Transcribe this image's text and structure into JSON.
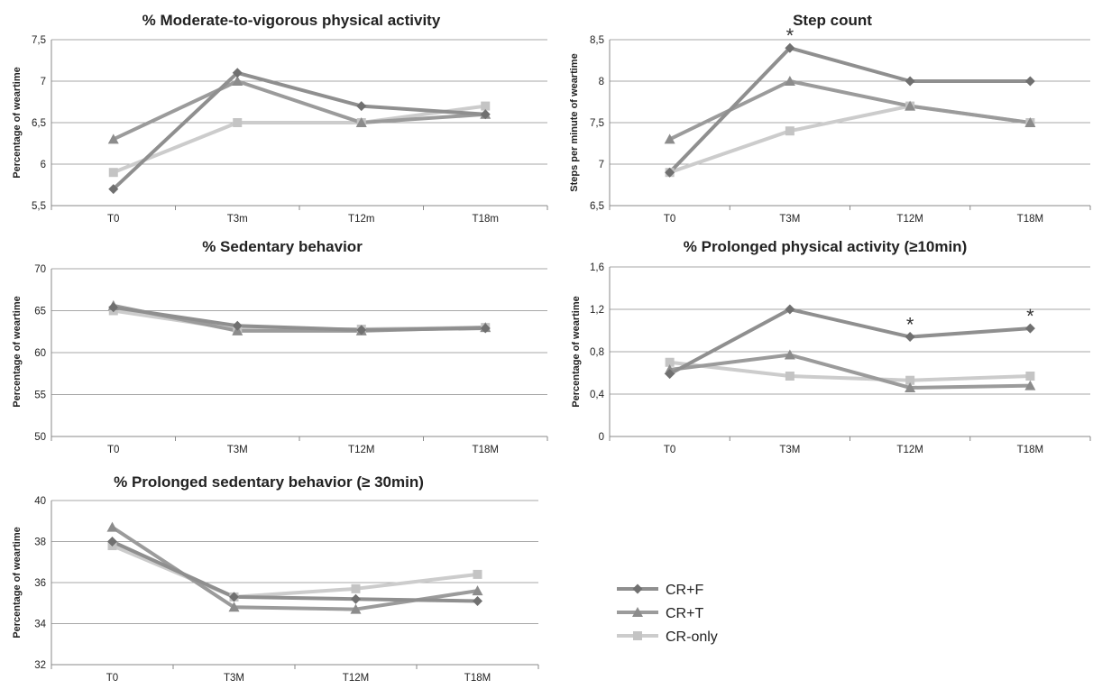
{
  "series_styles": [
    {
      "name": "CR+F",
      "color": "#8f8f8f",
      "marker": "diamond"
    },
    {
      "name": "CR+T",
      "color": "#9b9b9b",
      "marker": "triangle"
    },
    {
      "name": "CR-only",
      "color": "#cccccc",
      "marker": "square"
    }
  ],
  "legend": {
    "placement": "bottom-right",
    "items": [
      "CR+F",
      "CR+T",
      "CR-only"
    ]
  },
  "chart_data": [
    {
      "type": "line",
      "title": "% Moderate-to-vigorous physical activity",
      "ylabel": "Percentage of weartime",
      "xlabel": "",
      "categories": [
        "T0",
        "T3m",
        "T12m",
        "T18m"
      ],
      "ylim": [
        5.5,
        7.5
      ],
      "yticks": [
        "5,5",
        "6",
        "6,5",
        "7",
        "7,5"
      ],
      "grid": true,
      "series": [
        {
          "name": "CR+F",
          "values": [
            5.7,
            7.1,
            6.7,
            6.6
          ]
        },
        {
          "name": "CR+T",
          "values": [
            6.3,
            7.0,
            6.5,
            6.6
          ]
        },
        {
          "name": "CR-only",
          "values": [
            5.9,
            6.5,
            6.5,
            6.7
          ]
        }
      ],
      "annotations": []
    },
    {
      "type": "line",
      "title": "Step count",
      "ylabel": "Steps per minute of weartime",
      "xlabel": "",
      "categories": [
        "T0",
        "T3M",
        "T12M",
        "T18M"
      ],
      "ylim": [
        6.5,
        8.5
      ],
      "yticks": [
        "6,5",
        "7",
        "7,5",
        "8",
        "8,5"
      ],
      "grid": true,
      "series": [
        {
          "name": "CR+F",
          "values": [
            6.9,
            8.4,
            8.0,
            8.0
          ]
        },
        {
          "name": "CR+T",
          "values": [
            7.3,
            8.0,
            7.7,
            7.5
          ]
        },
        {
          "name": "CR-only",
          "values": [
            6.9,
            7.4,
            7.7,
            7.5
          ]
        }
      ],
      "annotations": [
        {
          "text": "*",
          "category": 1,
          "value": 8.4
        }
      ]
    },
    {
      "type": "line",
      "title": "% Sedentary behavior",
      "ylabel": "Percentage of weartime",
      "xlabel": "",
      "categories": [
        "T0",
        "T3M",
        "T12M",
        "T18M"
      ],
      "ylim": [
        50,
        70
      ],
      "yticks": [
        "50",
        "55",
        "60",
        "65",
        "70"
      ],
      "grid": true,
      "series": [
        {
          "name": "CR+F",
          "values": [
            65.4,
            63.2,
            62.7,
            62.9
          ]
        },
        {
          "name": "CR+T",
          "values": [
            65.6,
            62.6,
            62.6,
            63.0
          ]
        },
        {
          "name": "CR-only",
          "values": [
            65.0,
            62.8,
            62.8,
            63.0
          ]
        }
      ],
      "annotations": []
    },
    {
      "type": "line",
      "title": "% Prolonged physical activity (≥10min)",
      "ylabel": "Percentage of weartime",
      "xlabel": "",
      "categories": [
        "T0",
        "T3M",
        "T12M",
        "T18M"
      ],
      "ylim": [
        0,
        1.6
      ],
      "yticks": [
        "0",
        "0,4",
        "0,8",
        "1,2",
        "1,6"
      ],
      "grid": true,
      "series": [
        {
          "name": "CR+F",
          "values": [
            0.59,
            1.2,
            0.94,
            1.02
          ]
        },
        {
          "name": "CR+T",
          "values": [
            0.63,
            0.77,
            0.46,
            0.48
          ]
        },
        {
          "name": "CR-only",
          "values": [
            0.7,
            0.57,
            0.53,
            0.57
          ]
        }
      ],
      "annotations": [
        {
          "text": "*",
          "category": 2,
          "value": 0.94
        },
        {
          "text": "*",
          "category": 3,
          "value": 1.02
        }
      ]
    },
    {
      "type": "line",
      "title": "% Prolonged sedentary behavior (≥ 30min)",
      "ylabel": "Percentage of weartime",
      "xlabel": "",
      "categories": [
        "T0",
        "T3M",
        "T12M",
        "T18M"
      ],
      "ylim": [
        32,
        40
      ],
      "yticks": [
        "32",
        "34",
        "36",
        "38",
        "40"
      ],
      "grid": true,
      "series": [
        {
          "name": "CR+F",
          "values": [
            38.0,
            35.3,
            35.2,
            35.1
          ]
        },
        {
          "name": "CR+T",
          "values": [
            38.7,
            34.8,
            34.7,
            35.6
          ]
        },
        {
          "name": "CR-only",
          "values": [
            37.8,
            35.3,
            35.7,
            36.4
          ]
        }
      ],
      "annotations": []
    }
  ]
}
